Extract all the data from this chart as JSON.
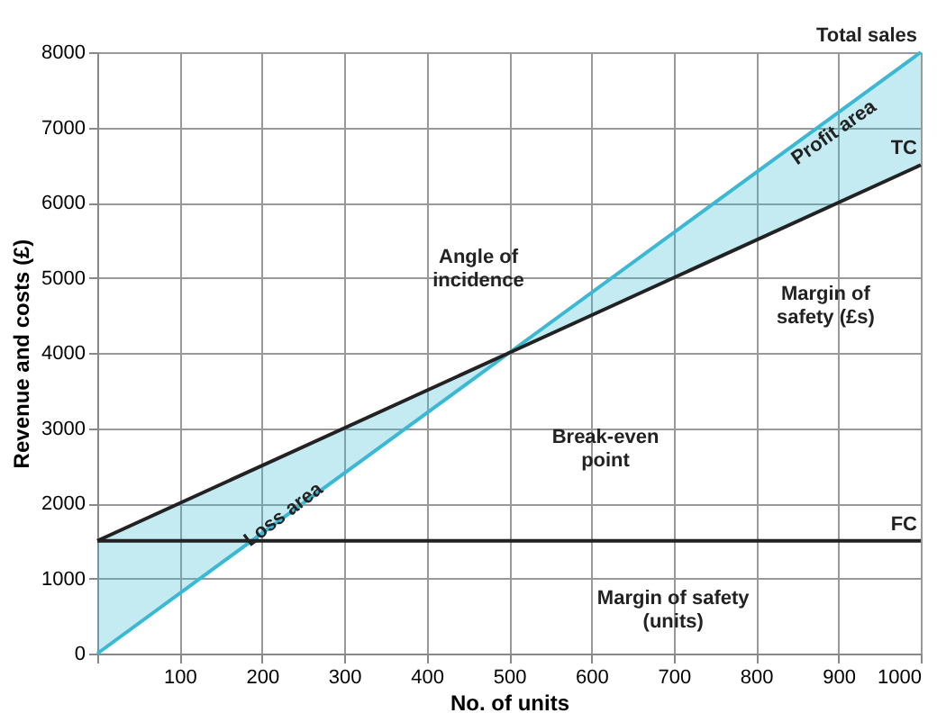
{
  "chart_data": {
    "type": "line",
    "xlabel": "No. of units",
    "ylabel": "Revenue and costs (£)",
    "x": [
      0,
      500,
      1000
    ],
    "series": [
      {
        "name": "Total sales",
        "color": "#3bb8d4",
        "values": [
          0,
          4000,
          8000
        ],
        "lower": [
          0,
          4000,
          6500
        ],
        "upper": [
          1500,
          4000,
          8000
        ]
      },
      {
        "name": "TC",
        "color": "#222222",
        "values": [
          1500,
          4000,
          6500
        ]
      },
      {
        "name": "FC",
        "color": "#222222",
        "values": [
          1500,
          1500,
          1500
        ]
      }
    ],
    "xlim": [
      0,
      1000
    ],
    "ylim": [
      0,
      8000
    ],
    "xticks": [
      {
        "value": 0,
        "label": null
      },
      100,
      200,
      300,
      400,
      500,
      600,
      700,
      800,
      900,
      1000
    ],
    "yticks": [
      0,
      1000,
      2000,
      3000,
      4000,
      5000,
      6000,
      7000,
      8000
    ],
    "grid": true,
    "marker": "none",
    "line_style": "solid",
    "annotations": [
      "Loss area",
      "Profit area",
      "Angle of\nincidence",
      "Break-even\npoint",
      "Margin of\nsafety (£s)",
      "Margin of safety\n(units)"
    ]
  }
}
